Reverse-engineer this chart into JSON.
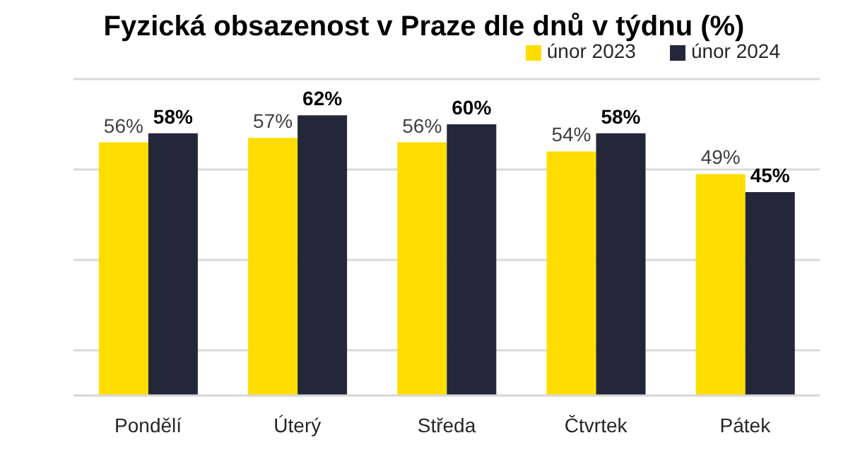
{
  "chart_data": {
    "type": "bar",
    "title": "Fyzická obsazenost v Praze dle dnů v týdnu (%)",
    "categories": [
      "Pondělí",
      "Úterý",
      "Středa",
      "Čtvrtek",
      "Pátek"
    ],
    "series": [
      {
        "name": "únor 2023",
        "color": "#ffdd00",
        "values": [
          56,
          57,
          56,
          54,
          49
        ],
        "value_labels": [
          "56%",
          "57%",
          "56%",
          "54%",
          "49%"
        ]
      },
      {
        "name": "únor 2024",
        "color": "#24273a",
        "values": [
          58,
          62,
          60,
          58,
          45
        ],
        "value_labels": [
          "58%",
          "62%",
          "60%",
          "58%",
          "45%"
        ]
      }
    ],
    "ylim": [
      0,
      70
    ],
    "yticks": [
      {
        "value": 10,
        "label": null
      },
      {
        "value": 30,
        "label": null
      },
      {
        "value": 50,
        "label": null
      },
      {
        "value": 70,
        "label": null
      }
    ],
    "tick_labels": "x",
    "grid": "y",
    "legend": "top right"
  }
}
